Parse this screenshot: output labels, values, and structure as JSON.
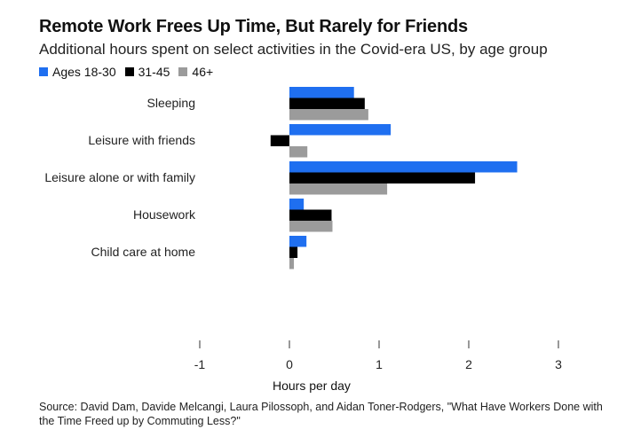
{
  "chart_data": {
    "type": "bar",
    "orientation": "horizontal",
    "title": "Remote Work Frees Up Time, But Rarely for Friends",
    "subtitle": "Additional hours spent on select activities in the Covid-era US, by age group",
    "categories": [
      "Sleeping",
      "Leisure with friends",
      "Leisure alone or with family",
      "Housework",
      "Child care at home"
    ],
    "series": [
      {
        "name": "Ages 18-30",
        "color": "#1f6ff0",
        "values": [
          0.72,
          1.13,
          2.54,
          0.16,
          0.19
        ]
      },
      {
        "name": "31-45",
        "color": "#000000",
        "values": [
          0.84,
          -0.21,
          2.07,
          0.47,
          0.09
        ]
      },
      {
        "name": "46+",
        "color": "#9b9b9b",
        "values": [
          0.88,
          0.2,
          1.09,
          0.48,
          0.05
        ]
      }
    ],
    "xlabel": "Hours per day",
    "xlim": [
      -1,
      3
    ],
    "xticks": [
      -1,
      0,
      1,
      2,
      3
    ],
    "grid": false,
    "legend": "top-left",
    "source": "Source: David Dam, Davide Melcangi, Laura Pilossoph, and Aidan Toner-Rodgers, \"What Have Workers Done with the Time Freed up by Commuting Less?\""
  }
}
